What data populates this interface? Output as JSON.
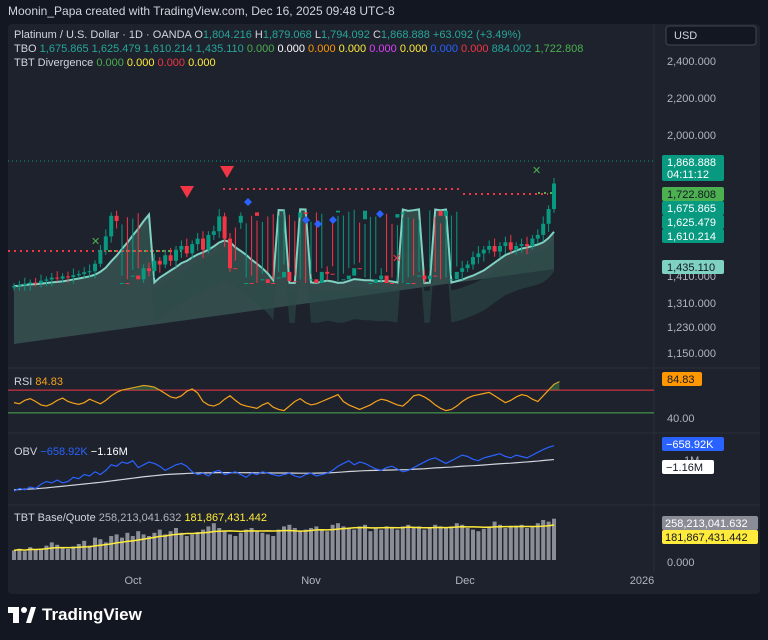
{
  "header": {
    "credit": "Moonin_Papa created with TradingView.com, Dec 16, 2025 09:48 UTC-8"
  },
  "legend": {
    "symbol": "Platinum / U.S. Dollar · 1D · OANDA",
    "ohlc": [
      {
        "k": "O",
        "v": "1,804.216"
      },
      {
        "k": "H",
        "v": "1,879.068"
      },
      {
        "k": "L",
        "v": "1,794.092"
      },
      {
        "k": "C",
        "v": "1,868.888"
      }
    ],
    "change": "+63.092 (+3.49%)",
    "tbo_name": "TBO",
    "tbo_values": [
      {
        "v": "1,675.865",
        "color": "#26a69a"
      },
      {
        "v": "1,625.479",
        "color": "#26a69a"
      },
      {
        "v": "1,610.214",
        "color": "#26a69a"
      },
      {
        "v": "1,435.110",
        "color": "#26a69a"
      },
      {
        "v": "0.000",
        "color": "#4caf50"
      },
      {
        "v": "0.000",
        "color": "#ffffff"
      },
      {
        "v": "0.000",
        "color": "#ff9800"
      },
      {
        "v": "0.000",
        "color": "#ffeb3b"
      },
      {
        "v": "0.000",
        "color": "#e040fb"
      },
      {
        "v": "0.000",
        "color": "#ffeb3b"
      },
      {
        "v": "0.000",
        "color": "#2962ff"
      },
      {
        "v": "0.000",
        "color": "#f23645"
      },
      {
        "v": "884.002",
        "color": "#26a69a"
      },
      {
        "v": "1,722.808",
        "color": "#4caf50"
      }
    ],
    "div_name": "TBT Divergence",
    "div_values": [
      {
        "v": "0.000",
        "color": "#4caf50"
      },
      {
        "v": "0.000",
        "color": "#ffeb3b"
      },
      {
        "v": "0.000",
        "color": "#f23645"
      },
      {
        "v": "0.000",
        "color": "#ffeb3b"
      }
    ]
  },
  "currency": "USD",
  "price_ticks": [
    "2,400.000",
    "2,200.000",
    "2,000.000",
    "1,310.000",
    "1,230.000",
    "1,150.000"
  ],
  "price_ticks_hidden": [
    "1,410.000"
  ],
  "price_tags": [
    {
      "label": "1,868.888",
      "sub": "04:11:12",
      "bg": "#089981",
      "fg": "#ffffff"
    },
    {
      "label": "1,722.808",
      "bg": "#4caf50",
      "fg": "#131722"
    },
    {
      "label": "1,675.865",
      "bg": "#089981",
      "fg": "#ffffff"
    },
    {
      "label": "1,625.479",
      "bg": "#089981",
      "fg": "#ffffff"
    },
    {
      "label": "1,610.214",
      "bg": "#089981",
      "fg": "#ffffff"
    },
    {
      "label": "1,435.110",
      "bg": "#7fd1c2",
      "fg": "#131722"
    }
  ],
  "rsi": {
    "title": "RSI",
    "value": "84.83",
    "tick": "40.00",
    "tag": "84.83"
  },
  "obv": {
    "title": "OBV",
    "v1": "−658.92K",
    "v2": "−1.16M",
    "tick": "1M",
    "tag1": "−658.92K",
    "tag2": "−1.16M"
  },
  "tbt": {
    "title": "TBT Base/Quote",
    "v1": "258,213,041.632",
    "v2": "181,867,431.442",
    "tag1": "258,213,041.632",
    "tag2": "181,867,431.442",
    "tick": "0.000"
  },
  "time_axis": [
    "Oct",
    "Nov",
    "Dec",
    "2026"
  ],
  "brand": "TradingView",
  "colors": {
    "bg": "#1e222d",
    "up": "#089981",
    "down": "#f23645",
    "ma": "#7fd1c2",
    "rsi": "#f7a21b",
    "obv": "#2962ff",
    "obv_ma": "#d1d4dc",
    "vol": "#8a8d95",
    "vol_ma": "#ffeb3b"
  },
  "chart_data": [
    {
      "type": "candlestick",
      "title": "Platinum / U.S. Dollar · 1D · OANDA",
      "ylim": [
        1100,
        2480
      ],
      "x_labels": [
        "Oct",
        "Nov",
        "Dec",
        "2026"
      ],
      "close": [
        1370,
        1373,
        1378,
        1382,
        1380,
        1388,
        1392,
        1398,
        1395,
        1402,
        1400,
        1406,
        1410,
        1415,
        1418,
        1440,
        1480,
        1520,
        1580,
        1565,
        1600,
        1590,
        1620,
        1610,
        1640,
        1632,
        1660,
        1650,
        1675,
        1660,
        1690,
        1700,
        1680,
        1705,
        1720,
        1690,
        1730,
        1740,
        1780,
        1720,
        1640,
        1560,
        1580,
        1600,
        1590,
        1580,
        1610,
        1600,
        1595,
        1615,
        1630,
        1605,
        1575,
        1590,
        1585,
        1610,
        1600,
        1630,
        1625,
        1590,
        1595,
        1610,
        1620,
        1640,
        1570,
        1595,
        1600,
        1610,
        1620,
        1600,
        1575,
        1585,
        1590,
        1600,
        1590,
        1620,
        1610,
        1620,
        1595,
        1580,
        1595,
        1610,
        1630,
        1640,
        1650,
        1670,
        1680,
        1690,
        1700,
        1685,
        1700,
        1710,
        1690,
        1700,
        1705,
        1700,
        1720,
        1730,
        1760,
        1800,
        1868.888
      ]
    },
    {
      "type": "line",
      "title": "RSI",
      "current": 84.83,
      "ylim": [
        0,
        100
      ],
      "values": [
        48,
        46,
        52,
        55,
        50,
        44,
        42,
        46,
        52,
        56,
        50,
        47,
        45,
        48,
        54,
        50,
        46,
        52,
        60,
        66,
        70,
        72,
        74,
        76,
        78,
        77,
        75,
        70,
        64,
        58,
        56,
        60,
        68,
        72,
        65,
        50,
        44,
        42,
        46,
        54,
        60,
        52,
        45,
        42,
        40,
        38,
        44,
        48,
        40,
        36,
        34,
        42,
        50,
        55,
        48,
        44,
        46,
        50,
        54,
        58,
        62,
        50,
        44,
        40,
        36,
        40,
        44,
        50,
        54,
        52,
        48,
        44,
        42,
        50,
        60,
        62,
        58,
        52,
        44,
        38,
        34,
        36,
        42,
        50,
        56,
        60,
        62,
        64,
        66,
        60,
        54,
        48,
        52,
        58,
        62,
        60,
        54,
        50,
        60,
        70,
        80,
        84.83
      ]
    },
    {
      "type": "line",
      "title": "OBV",
      "ylim": [
        -3000000,
        1500000
      ],
      "series": [
        {
          "name": "OBV",
          "current": -658920,
          "values": [
            -2300000,
            -2200000,
            -2250000,
            -2150000,
            -2200000,
            -2050000,
            -1950000,
            -2000000,
            -1900000,
            -2000000,
            -1950000,
            -1800000,
            -1850000,
            -1700000,
            -1750000,
            -1600000,
            -1700000,
            -1550000,
            -1350000,
            -1400000,
            -1250000,
            -1300000,
            -1200000,
            -1450000,
            -1350000,
            -1250000,
            -1300000,
            -1400000,
            -1550000,
            -1450000,
            -1350000,
            -1300000,
            -1400000,
            -1600000,
            -1700000,
            -1650000,
            -1750000,
            -1600000,
            -1550000,
            -1700000,
            -1650000,
            -1600000,
            -1700000,
            -1800000,
            -1650000,
            -1700000,
            -1600000,
            -1650000,
            -1700000,
            -1750000,
            -1700000,
            -1650000,
            -1750000,
            -1800000,
            -1700000,
            -1650000,
            -1750000,
            -1700000,
            -1650000,
            -1550000,
            -1400000,
            -1300000,
            -1200000,
            -1350000,
            -1250000,
            -1300000,
            -1400000,
            -1500000,
            -1550000,
            -1450000,
            -1400000,
            -1500000,
            -1600000,
            -1550000,
            -1450000,
            -1350000,
            -1250000,
            -1150000,
            -1100000,
            -1200000,
            -1300000,
            -1200000,
            -1100000,
            -1000000,
            -1050000,
            -1150000,
            -1200000,
            -1100000,
            -1050000,
            -1000000,
            -950000,
            -1050000,
            -1100000,
            -1000000,
            -1050000,
            -1100000,
            -1000000,
            -900000,
            -800000,
            -720000,
            -658920
          ]
        },
        {
          "name": "OBV MA",
          "current": -1160000,
          "values": [
            -2250000,
            -2240000,
            -2230000,
            -2220000,
            -2210000,
            -2195000,
            -2180000,
            -2160000,
            -2140000,
            -2120000,
            -2100000,
            -2080000,
            -2060000,
            -2040000,
            -2020000,
            -2000000,
            -1980000,
            -1955000,
            -1930000,
            -1905000,
            -1880000,
            -1855000,
            -1830000,
            -1805000,
            -1780000,
            -1760000,
            -1740000,
            -1720000,
            -1700000,
            -1690000,
            -1680000,
            -1670000,
            -1660000,
            -1650000,
            -1645000,
            -1640000,
            -1640000,
            -1635000,
            -1630000,
            -1630000,
            -1630000,
            -1630000,
            -1632000,
            -1635000,
            -1635000,
            -1638000,
            -1640000,
            -1640000,
            -1642000,
            -1645000,
            -1645000,
            -1645000,
            -1648000,
            -1650000,
            -1650000,
            -1650000,
            -1648000,
            -1645000,
            -1640000,
            -1632000,
            -1620000,
            -1605000,
            -1590000,
            -1580000,
            -1570000,
            -1560000,
            -1555000,
            -1550000,
            -1545000,
            -1540000,
            -1535000,
            -1530000,
            -1525000,
            -1520000,
            -1510000,
            -1500000,
            -1490000,
            -1475000,
            -1460000,
            -1450000,
            -1440000,
            -1430000,
            -1415000,
            -1400000,
            -1390000,
            -1380000,
            -1370000,
            -1355000,
            -1340000,
            -1325000,
            -1310000,
            -1300000,
            -1290000,
            -1275000,
            -1260000,
            -1245000,
            -1230000,
            -1215000,
            -1195000,
            -1175000,
            -1160000
          ]
        }
      ]
    },
    {
      "type": "bar",
      "title": "TBT Base/Quote",
      "ylim": [
        0,
        300000000000000
      ],
      "series": [
        {
          "name": "Base/Quote",
          "current": 258213041632,
          "values": [
            60,
            70,
            55,
            80,
            65,
            72,
            90,
            110,
            95,
            80,
            70,
            85,
            100,
            120,
            90,
            140,
            130,
            110,
            150,
            160,
            140,
            170,
            150,
            180,
            160,
            150,
            170,
            190,
            160,
            180,
            200,
            170,
            150,
            160,
            175,
            190,
            210,
            230,
            200,
            180,
            160,
            150,
            170,
            190,
            200,
            180,
            170,
            160,
            150,
            190,
            210,
            220,
            200,
            180,
            190,
            200,
            210,
            190,
            180,
            220,
            230,
            210,
            200,
            190,
            210,
            220,
            180,
            200,
            190,
            210,
            200,
            190,
            210,
            220,
            200,
            210,
            190,
            200,
            220,
            210,
            200,
            210,
            230,
            220,
            200,
            190,
            180,
            195,
            210,
            240,
            220,
            200,
            210,
            215,
            220,
            200,
            210,
            230,
            250,
            240,
            258
          ]
        },
        {
          "name": "MA",
          "current": 181867431442
        }
      ]
    }
  ]
}
